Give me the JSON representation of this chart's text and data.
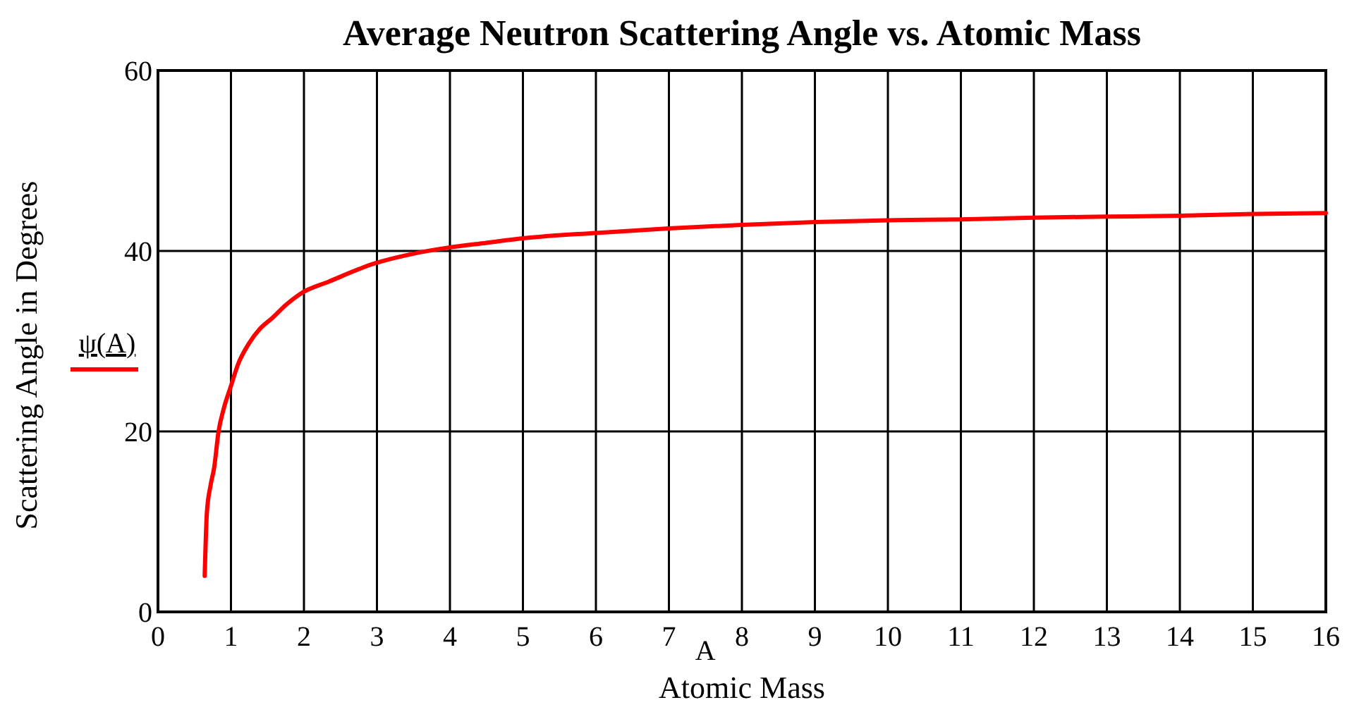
{
  "chart_data": {
    "type": "line",
    "title": "Average Neutron Scattering Angle vs. Atomic Mass",
    "xlabel": "Atomic Mass",
    "ylabel": "Scattering Angle in Degrees",
    "annotations": [
      "A"
    ],
    "series": [
      {
        "name": "ψ(A)",
        "color": "#ff0000",
        "x": [
          0.64,
          0.67,
          0.72,
          0.77,
          0.83,
          0.9,
          0.99,
          1.1,
          1.25,
          1.4,
          1.57,
          1.75,
          1.96,
          2.34,
          2.96,
          3.5,
          4,
          4.5,
          5,
          6,
          7,
          8,
          9,
          10,
          11,
          12,
          13,
          14,
          15,
          16
        ],
        "values": [
          4,
          11,
          14,
          16,
          20,
          22.5,
          24.8,
          27.5,
          29.8,
          31.4,
          32.6,
          34,
          35.3,
          36.6,
          38.6,
          39.7,
          40.4,
          40.9,
          41.4,
          42,
          42.5,
          42.9,
          43.2,
          43.4,
          43.5,
          43.7,
          43.8,
          43.9,
          44.1,
          44.2
        ]
      }
    ],
    "xlim": [
      0,
      16
    ],
    "xticks": [
      0,
      1,
      2,
      3,
      4,
      5,
      6,
      7,
      8,
      9,
      10,
      11,
      12,
      13,
      14,
      15,
      16
    ],
    "ylim": [
      0,
      60
    ],
    "yticks": [
      0,
      20,
      40,
      60
    ],
    "grid": true,
    "legend": "left",
    "line_style": "solid",
    "marker": "none"
  }
}
